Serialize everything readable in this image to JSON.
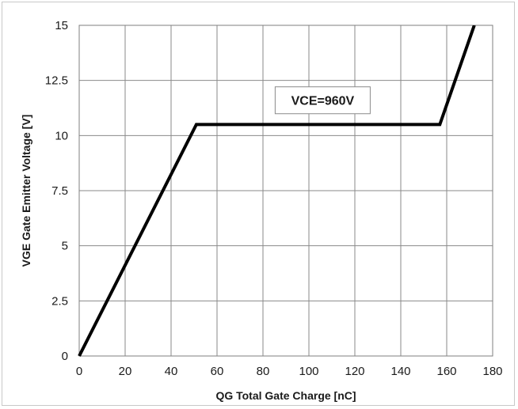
{
  "chart_data": {
    "type": "line",
    "title": "",
    "xlabel": "QG Total Gate Charge [nC]",
    "ylabel": "VGE Gate Emitter Voltage [V]",
    "xlim": [
      0,
      180
    ],
    "ylim": [
      0,
      15
    ],
    "grid": true,
    "x_ticks": [
      "0",
      "20",
      "40",
      "60",
      "80",
      "100",
      "120",
      "140",
      "160",
      "180"
    ],
    "y_ticks": [
      "0",
      "2.5",
      "5",
      "7.5",
      "10",
      "12.5",
      "15"
    ],
    "series": [
      {
        "x": [
          0,
          51,
          157,
          172
        ],
        "y": [
          0,
          10.5,
          10.5,
          15
        ],
        "color": "#000000"
      }
    ],
    "annotations": [
      {
        "text": "VCE=960V",
        "x": 106,
        "y": 11.6
      }
    ]
  }
}
